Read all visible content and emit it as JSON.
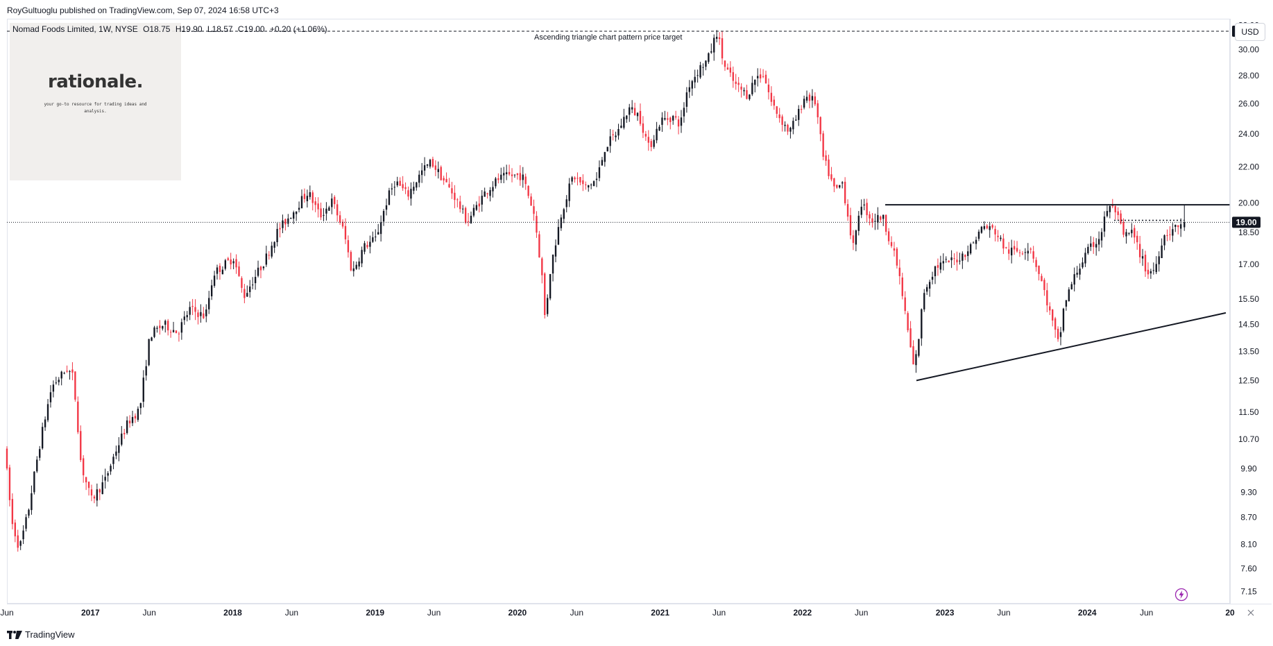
{
  "header": {
    "publisher_line": "RoyGultuoglu published on TradingView.com, Sep 07, 2024 16:58 UTC+3"
  },
  "symbol_info": {
    "name": "Nomad Foods Limited, 1W, NYSE",
    "open": "O18.75",
    "high": "H19.90",
    "low": "L18.57",
    "close": "C19.00",
    "change": "+0.20 (+1.06%)"
  },
  "currency_button": "USD",
  "logo": {
    "wordmark": "rationale.",
    "tagline": "your go-to resource for trading ideas and analysis."
  },
  "footer": {
    "brand": "TradingView"
  },
  "icons": {
    "lightning": "lightning-icon",
    "settings": "settings-icon",
    "tv_logo": "tradingview-logo-icon"
  },
  "colors": {
    "up": "#131722",
    "down": "#f23645",
    "price_tag_bg": "#131722",
    "price_tag_text": "#ffffff",
    "lightning": "#9c27b0"
  },
  "chart_data": {
    "type": "candlestick",
    "title": "Nomad Foods Limited, 1W, NYSE",
    "y_scale": "log",
    "ylim": [
      6.95,
      32.5
    ],
    "xlim": [
      "2016-06-01",
      "2025-01-01"
    ],
    "y_ticks": [
      "32.00",
      "30.00",
      "28.00",
      "26.00",
      "24.00",
      "22.00",
      "20.00",
      "18.50",
      "17.00",
      "15.50",
      "14.50",
      "13.50",
      "12.50",
      "11.50",
      "10.70",
      "9.90",
      "9.30",
      "8.70",
      "8.10",
      "7.60",
      "7.15"
    ],
    "x_ticks": [
      {
        "label": "Jun",
        "date": "2016-06-01",
        "bold": false
      },
      {
        "label": "2017",
        "date": "2017-01-01",
        "bold": true
      },
      {
        "label": "Jun",
        "date": "2017-06-01",
        "bold": false
      },
      {
        "label": "2018",
        "date": "2018-01-01",
        "bold": true
      },
      {
        "label": "Jun",
        "date": "2018-06-01",
        "bold": false
      },
      {
        "label": "2019",
        "date": "2019-01-01",
        "bold": true
      },
      {
        "label": "Jun",
        "date": "2019-06-01",
        "bold": false
      },
      {
        "label": "2020",
        "date": "2020-01-01",
        "bold": true
      },
      {
        "label": "Jun",
        "date": "2020-06-01",
        "bold": false
      },
      {
        "label": "2021",
        "date": "2021-01-01",
        "bold": true
      },
      {
        "label": "Jun",
        "date": "2021-06-01",
        "bold": false
      },
      {
        "label": "2022",
        "date": "2022-01-01",
        "bold": true
      },
      {
        "label": "Jun",
        "date": "2022-06-01",
        "bold": false
      },
      {
        "label": "2023",
        "date": "2023-01-01",
        "bold": true
      },
      {
        "label": "Jun",
        "date": "2023-06-01",
        "bold": false
      },
      {
        "label": "2024",
        "date": "2024-01-01",
        "bold": true
      },
      {
        "label": "Jun",
        "date": "2024-06-01",
        "bold": false
      },
      {
        "label": "20",
        "date": "2025-01-01",
        "bold": true
      }
    ],
    "price_path": [
      [
        "2016-06-01",
        10.5
      ],
      [
        "2016-06-20",
        8.6
      ],
      [
        "2016-07-10",
        8.0
      ],
      [
        "2016-08-01",
        8.8
      ],
      [
        "2016-09-01",
        10.6
      ],
      [
        "2016-10-01",
        12.3
      ],
      [
        "2016-11-10",
        12.9
      ],
      [
        "2016-11-25",
        12.6
      ],
      [
        "2016-12-15",
        10.0
      ],
      [
        "2017-01-10",
        9.1
      ],
      [
        "2017-02-15",
        9.6
      ],
      [
        "2017-03-15",
        10.4
      ],
      [
        "2017-04-15",
        11.2
      ],
      [
        "2017-05-15",
        11.6
      ],
      [
        "2017-06-10",
        14.1
      ],
      [
        "2017-07-15",
        14.5
      ],
      [
        "2017-08-20",
        14.2
      ],
      [
        "2017-09-20",
        15.1
      ],
      [
        "2017-10-30",
        14.8
      ],
      [
        "2017-11-20",
        16.6
      ],
      [
        "2018-01-10",
        17.3
      ],
      [
        "2018-02-05",
        15.6
      ],
      [
        "2018-03-01",
        16.3
      ],
      [
        "2018-04-01",
        17.2
      ],
      [
        "2018-05-01",
        18.5
      ],
      [
        "2018-06-10",
        19.5
      ],
      [
        "2018-07-20",
        20.6
      ],
      [
        "2018-08-20",
        19.3
      ],
      [
        "2018-09-20",
        20.1
      ],
      [
        "2018-10-20",
        18.5
      ],
      [
        "2018-11-10",
        16.6
      ],
      [
        "2018-12-10",
        17.8
      ],
      [
        "2019-01-10",
        18.2
      ],
      [
        "2019-02-10",
        20.3
      ],
      [
        "2019-03-01",
        21.2
      ],
      [
        "2019-04-01",
        20.4
      ],
      [
        "2019-05-10",
        21.8
      ],
      [
        "2019-06-01",
        22.3
      ],
      [
        "2019-07-01",
        21.3
      ],
      [
        "2019-08-01",
        20.3
      ],
      [
        "2019-09-01",
        19.0
      ],
      [
        "2019-10-15",
        20.5
      ],
      [
        "2019-11-20",
        21.3
      ],
      [
        "2019-12-20",
        21.5
      ],
      [
        "2020-01-20",
        21.5
      ],
      [
        "2020-02-20",
        19.4
      ],
      [
        "2020-03-12",
        16.3
      ],
      [
        "2020-03-19",
        14.6
      ],
      [
        "2020-03-30",
        16.5
      ],
      [
        "2020-04-30",
        19.5
      ],
      [
        "2020-05-30",
        21.5
      ],
      [
        "2020-06-30",
        20.8
      ],
      [
        "2020-07-30",
        21.3
      ],
      [
        "2020-08-20",
        23.2
      ],
      [
        "2020-09-20",
        24.1
      ],
      [
        "2020-10-20",
        25.7
      ],
      [
        "2020-11-15",
        25.2
      ],
      [
        "2020-12-10",
        23.1
      ],
      [
        "2021-01-10",
        24.9
      ],
      [
        "2021-02-10",
        25.1
      ],
      [
        "2021-03-01",
        24.6
      ],
      [
        "2021-03-20",
        27.2
      ],
      [
        "2021-04-20",
        28.6
      ],
      [
        "2021-05-10",
        29.2
      ],
      [
        "2021-05-25",
        30.6
      ],
      [
        "2021-06-03",
        31.5
      ],
      [
        "2021-06-20",
        28.8
      ],
      [
        "2021-07-20",
        27.3
      ],
      [
        "2021-08-20",
        26.6
      ],
      [
        "2021-09-10",
        27.9
      ],
      [
        "2021-09-30",
        28.1
      ],
      [
        "2021-10-20",
        26.1
      ],
      [
        "2021-11-10",
        25.1
      ],
      [
        "2021-12-05",
        24.1
      ],
      [
        "2021-12-25",
        25.1
      ],
      [
        "2022-01-15",
        26.6
      ],
      [
        "2022-02-10",
        26.1
      ],
      [
        "2022-03-01",
        22.6
      ],
      [
        "2022-04-01",
        20.6
      ],
      [
        "2022-04-20",
        21.1
      ],
      [
        "2022-05-10",
        18.6
      ],
      [
        "2022-05-20",
        17.6
      ],
      [
        "2022-06-05",
        20.1
      ],
      [
        "2022-07-05",
        19.1
      ],
      [
        "2022-08-01",
        19.3
      ],
      [
        "2022-09-10",
        16.8
      ],
      [
        "2022-10-01",
        14.6
      ],
      [
        "2022-10-20",
        12.9
      ],
      [
        "2022-10-30",
        13.6
      ],
      [
        "2022-11-15",
        15.8
      ],
      [
        "2022-12-15",
        16.9
      ],
      [
        "2023-01-15",
        17.1
      ],
      [
        "2023-02-15",
        17.3
      ],
      [
        "2023-03-15",
        17.8
      ],
      [
        "2023-04-15",
        18.8
      ],
      [
        "2023-05-15",
        18.6
      ],
      [
        "2023-06-15",
        17.6
      ],
      [
        "2023-07-15",
        17.6
      ],
      [
        "2023-08-15",
        17.8
      ],
      [
        "2023-09-15",
        16.1
      ],
      [
        "2023-10-10",
        14.6
      ],
      [
        "2023-10-27",
        13.7
      ],
      [
        "2023-11-10",
        15.3
      ],
      [
        "2023-12-10",
        16.6
      ],
      [
        "2024-01-10",
        17.6
      ],
      [
        "2024-02-10",
        18.3
      ],
      [
        "2024-03-01",
        19.8
      ],
      [
        "2024-03-20",
        19.6
      ],
      [
        "2024-04-10",
        18.3
      ],
      [
        "2024-05-01",
        18.5
      ],
      [
        "2024-05-20",
        17.6
      ],
      [
        "2024-06-10",
        16.6
      ],
      [
        "2024-06-30",
        16.8
      ],
      [
        "2024-07-20",
        18.3
      ],
      [
        "2024-08-10",
        18.6
      ],
      [
        "2024-08-30",
        18.8
      ],
      [
        "2024-09-06",
        19.0
      ]
    ],
    "last_bar": {
      "date": "2024-09-06",
      "open": 18.75,
      "high": 19.9,
      "low": 18.57,
      "close": 19.0
    },
    "annotations": {
      "target_line": {
        "price": 31.5,
        "label": "31.50",
        "text": "Ascending triangle chart pattern price target"
      },
      "current_price_line": {
        "price": 19.0,
        "label": "19.00"
      },
      "resistance_line": {
        "from": [
          "2022-08-01",
          19.9
        ],
        "to": [
          "2024-12-31",
          19.9
        ]
      },
      "support_line": {
        "from": [
          "2022-10-20",
          12.5
        ],
        "to": [
          "2024-12-31",
          14.95
        ]
      },
      "dotted_line": {
        "from": [
          "2024-03-10",
          19.1
        ],
        "to": [
          "2024-09-06",
          19.1
        ]
      }
    }
  }
}
